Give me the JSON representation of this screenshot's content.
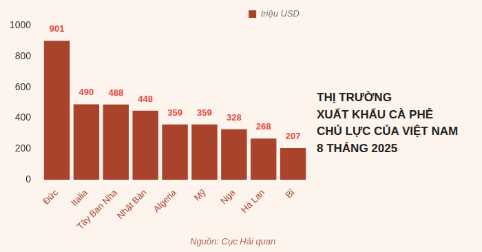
{
  "chart_data": {
    "type": "bar",
    "title": [
      "THỊ TRƯỜNG",
      "XUẤT KHẨU CÀ PHÊ",
      "CHỦ LỰC CỦA VIỆT NAM",
      "8 THÁNG 2025"
    ],
    "source": "Nguồn: Cục Hải quan",
    "categories": [
      "Đức",
      "Italia",
      "Tây Ban Nha",
      "Nhật Bản",
      "Algeria",
      "Mỹ",
      "Nga",
      "Hà Lan",
      "Bỉ"
    ],
    "series": [
      {
        "name": "triệu USD",
        "color": "#a9432c",
        "values": [
          901,
          490,
          488,
          448,
          359,
          359,
          328,
          268,
          207
        ]
      }
    ],
    "ylim": [
      0,
      1000
    ],
    "yticks": [
      0,
      200,
      400,
      600,
      800,
      1000
    ],
    "grid": false,
    "legend": "top",
    "data_labels": true
  }
}
